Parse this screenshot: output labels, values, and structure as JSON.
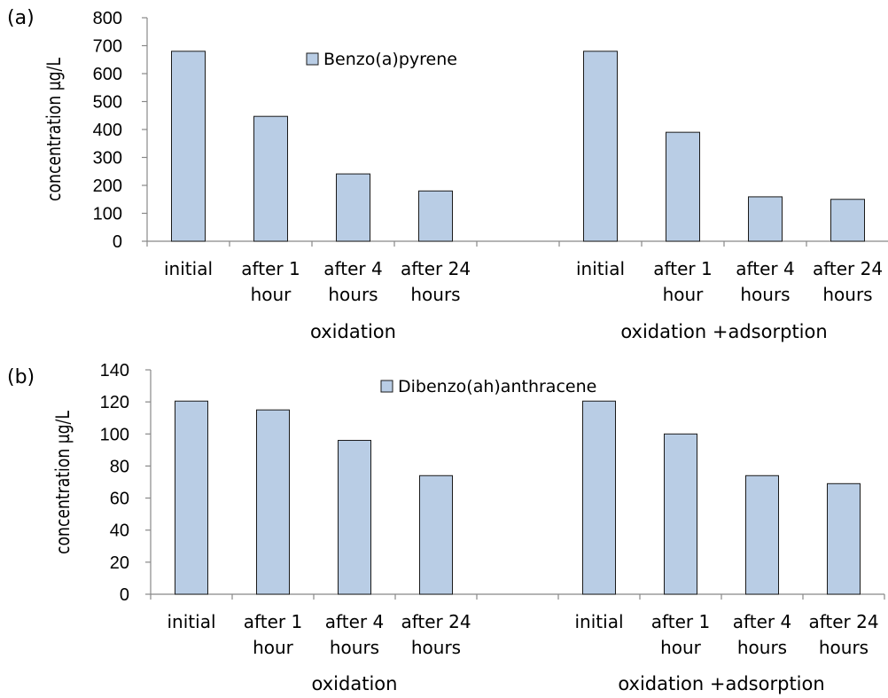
{
  "chart_data": [
    {
      "type": "bar",
      "panel_label": "(a)",
      "legend": "Benzo(a)pyrene",
      "ylabel": "concentration µg/L",
      "ylim": [
        0,
        800
      ],
      "yticks": [
        "0",
        "100",
        "200",
        "300",
        "400",
        "500",
        "600",
        "700",
        "800"
      ],
      "categories": [
        [
          "initial"
        ],
        [
          "after 1",
          "hour"
        ],
        [
          "after 4",
          "hours"
        ],
        [
          "after 24",
          "hours"
        ],
        [
          ""
        ],
        [
          "initial"
        ],
        [
          "after 1",
          "hour"
        ],
        [
          "after 4",
          "hours"
        ],
        [
          "after 24",
          "hours"
        ]
      ],
      "groups": [
        "oxidation",
        "oxidation +adsorption"
      ],
      "series": [
        {
          "name": "Benzo(a)pyrene",
          "values": [
            680,
            447,
            241,
            180,
            null,
            680,
            390,
            159,
            150
          ]
        }
      ],
      "grid": false,
      "legend_position": "top-center",
      "bar_color": "#b9cde5"
    },
    {
      "type": "bar",
      "panel_label": "(b)",
      "legend": "Dibenzo(ah)anthracene",
      "ylabel": "concentration µg/L",
      "ylim": [
        0,
        140
      ],
      "yticks": [
        "0",
        "20",
        "40",
        "60",
        "80",
        "100",
        "120",
        "140"
      ],
      "categories": [
        [
          "initial"
        ],
        [
          "after 1",
          "hour"
        ],
        [
          "after 4",
          "hours"
        ],
        [
          "after 24",
          "hours"
        ],
        [
          ""
        ],
        [
          "initial"
        ],
        [
          "after 1",
          "hour"
        ],
        [
          "after 4",
          "hours"
        ],
        [
          "after 24",
          "hours"
        ]
      ],
      "groups": [
        "oxidation",
        "oxidation +adsorption"
      ],
      "series": [
        {
          "name": "Dibenzo(ah)anthracene",
          "values": [
            120.5,
            115,
            96,
            74,
            null,
            120.5,
            100,
            74,
            69
          ]
        }
      ],
      "grid": false,
      "legend_position": "top-center",
      "bar_color": "#b9cde5"
    }
  ]
}
